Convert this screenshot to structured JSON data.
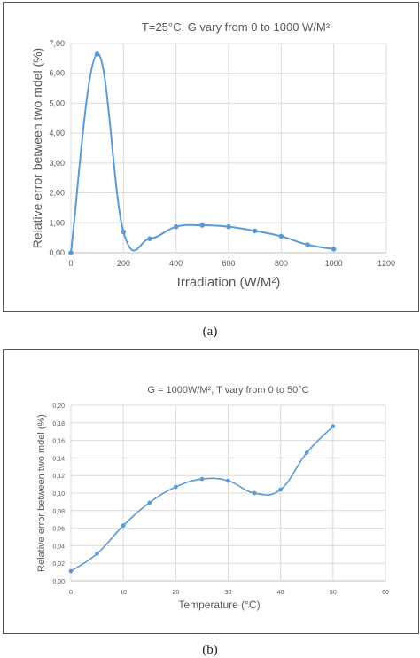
{
  "captions": {
    "a": "(a)",
    "b": "(b)"
  },
  "chart_data": [
    {
      "type": "line",
      "title": "T=25°C, G vary from 0 to 1000 W/M²",
      "xlabel": "Irradiation (W/M²)",
      "ylabel": "Relative error between two mdel (%)",
      "xlim": [
        0,
        1200
      ],
      "ylim": [
        0,
        7
      ],
      "xticks": [
        "0",
        "200",
        "400",
        "600",
        "800",
        "1000",
        "1200"
      ],
      "yticks": [
        "0,00",
        "1,00",
        "2,00",
        "3,00",
        "4,00",
        "5,00",
        "6,00",
        "7,00"
      ],
      "grid": true,
      "smooth": true,
      "color": "#5b9bd5",
      "series": [
        {
          "x": [
            0,
            100,
            200,
            300,
            400,
            500,
            600,
            700,
            800,
            900,
            1000
          ],
          "values": [
            0.0,
            6.65,
            0.7,
            0.47,
            0.87,
            0.92,
            0.87,
            0.73,
            0.55,
            0.27,
            0.12
          ]
        }
      ]
    },
    {
      "type": "line",
      "title": "G = 1000W/M², T vary from 0 to 50°C",
      "xlabel": "Temperature  (°C)",
      "ylabel": "Relative error between two mdel (%)",
      "xlim": [
        0,
        60
      ],
      "ylim": [
        0,
        0.2
      ],
      "xticks": [
        "0",
        "10",
        "20",
        "30",
        "40",
        "50",
        "60"
      ],
      "yticks": [
        "0,00",
        "0,02",
        "0,04",
        "0,06",
        "0,08",
        "0,10",
        "0,12",
        "0,14",
        "0,16",
        "0,18",
        "0,20"
      ],
      "grid": true,
      "smooth": true,
      "color": "#5b9bd5",
      "series": [
        {
          "x": [
            0,
            5,
            10,
            15,
            20,
            25,
            30,
            35,
            40,
            45,
            50
          ],
          "values": [
            0.011,
            0.031,
            0.063,
            0.089,
            0.107,
            0.116,
            0.114,
            0.1,
            0.104,
            0.146,
            0.176
          ]
        }
      ]
    }
  ]
}
